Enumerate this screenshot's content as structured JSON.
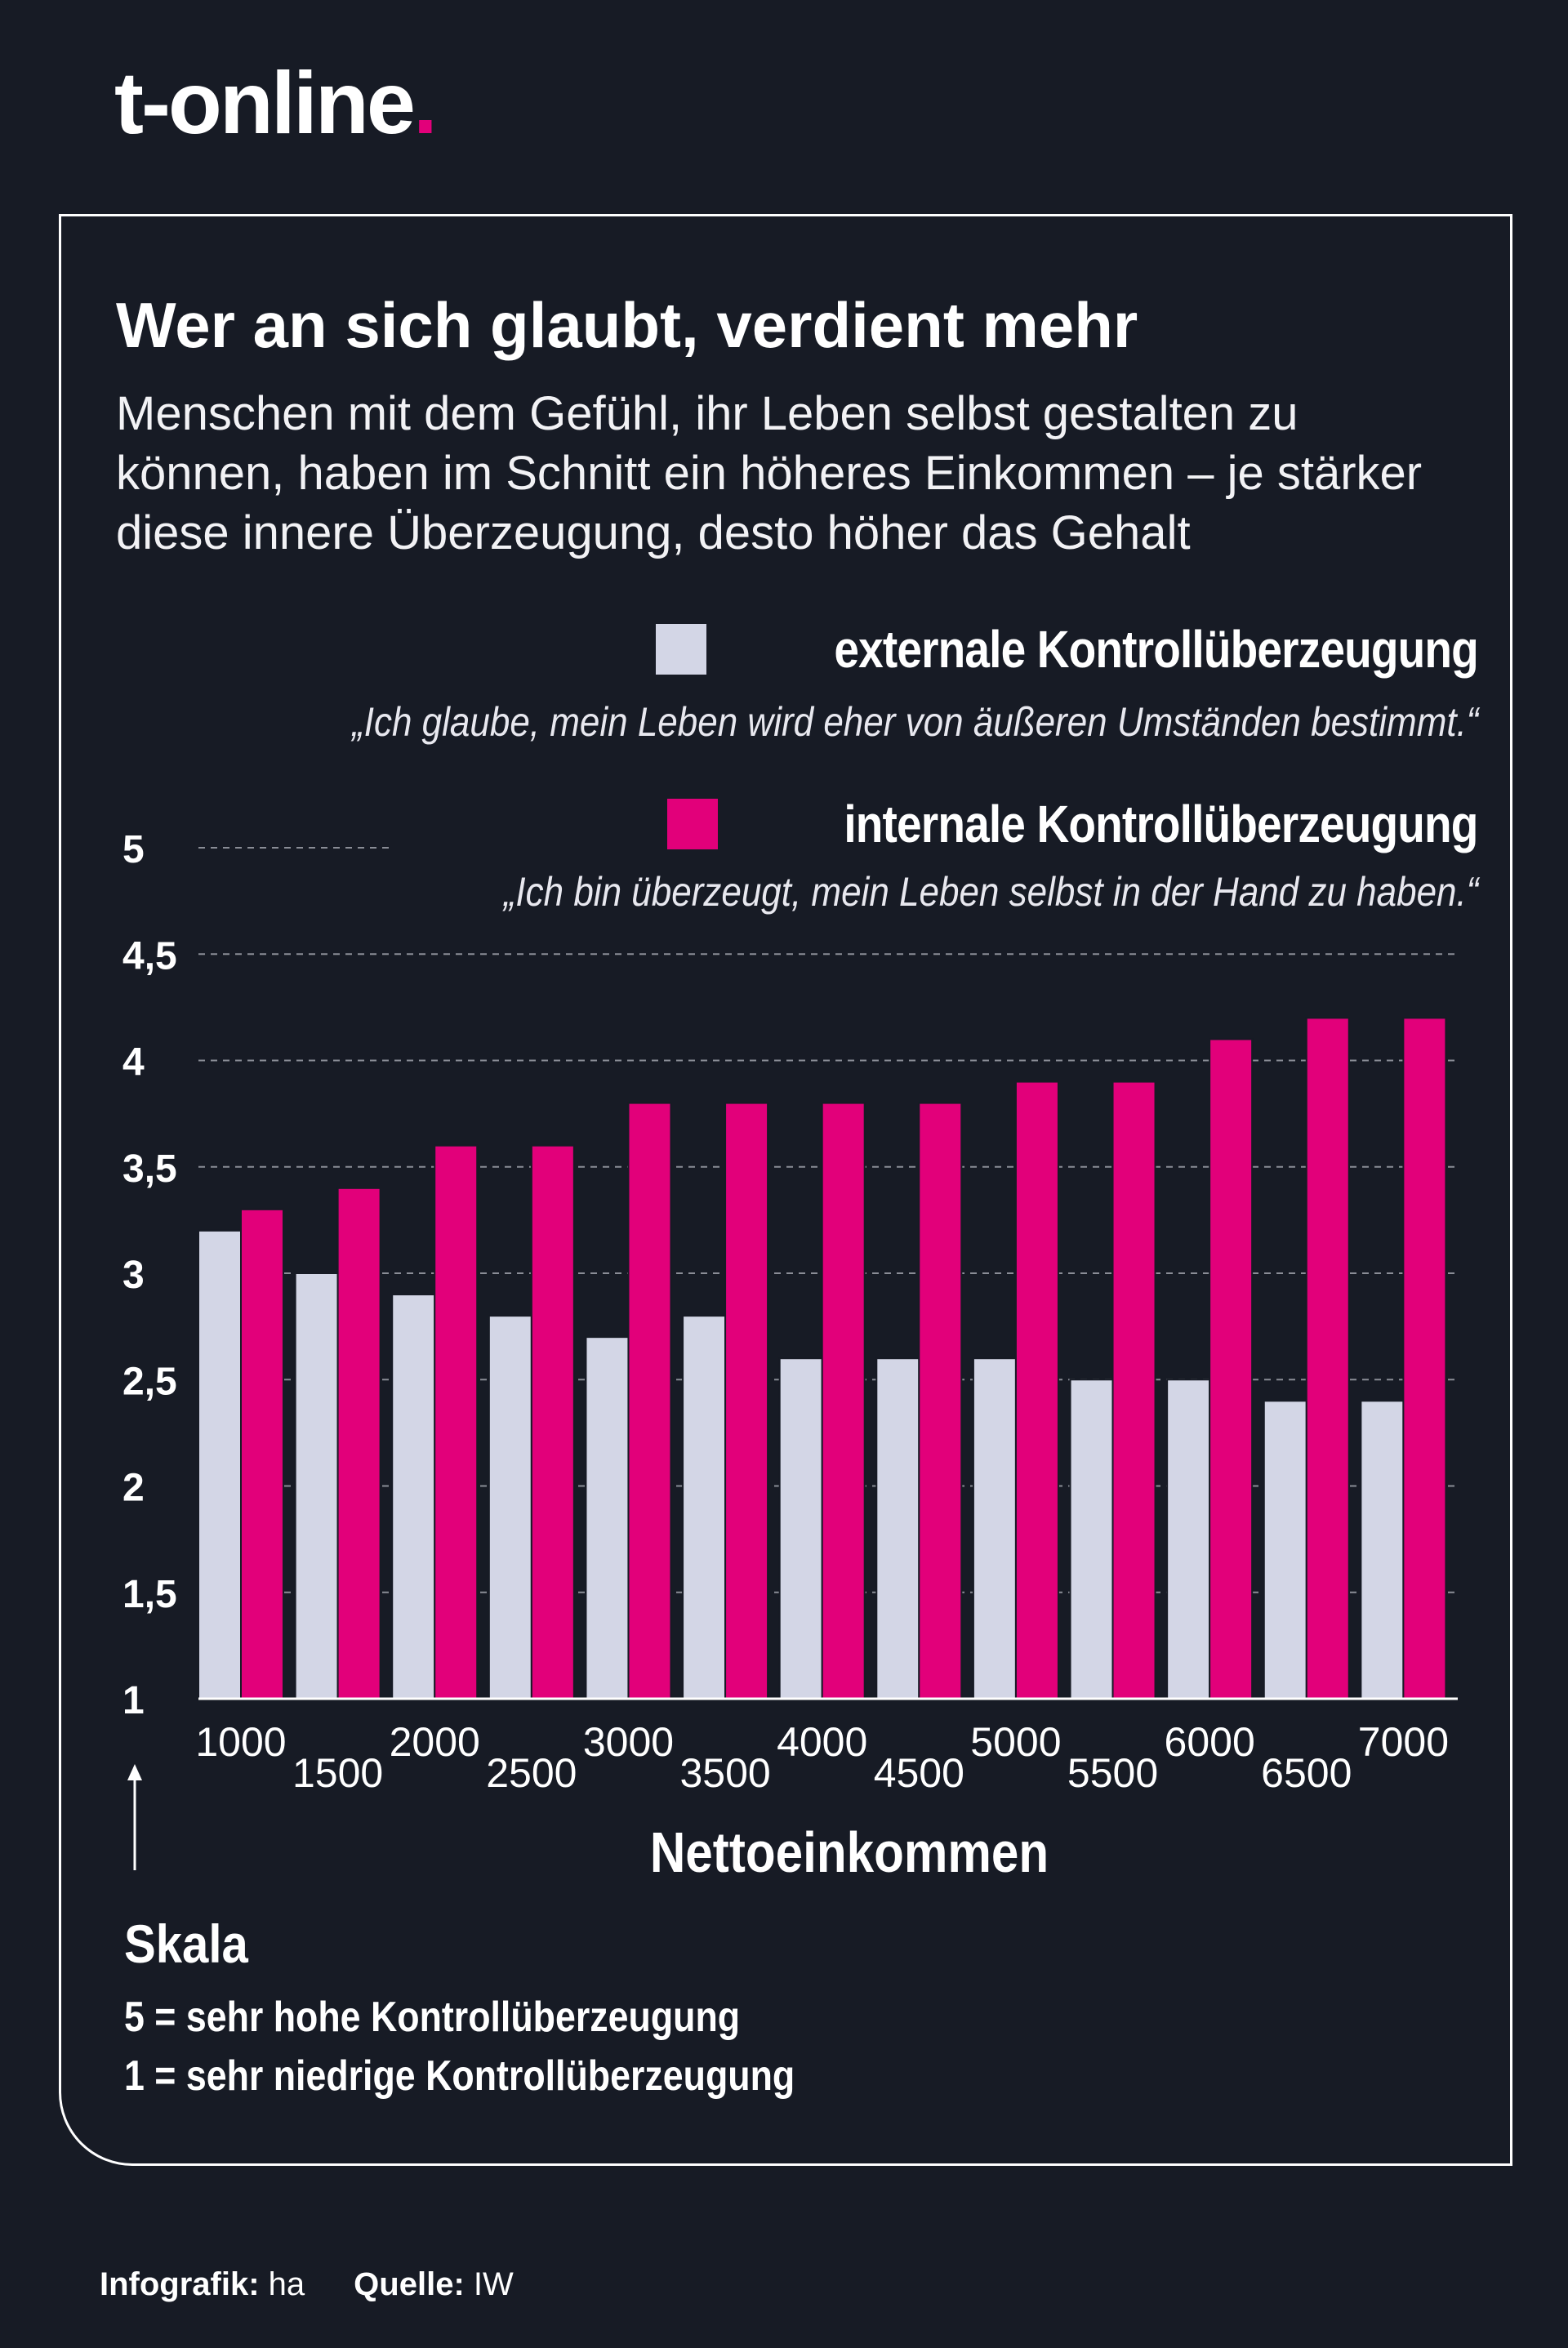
{
  "brand": {
    "name": "t-online",
    "dot": "."
  },
  "title": "Wer an sich glaubt, verdient mehr",
  "subtitle": "Menschen mit dem Gefühl, ihr Leben selbst gestalten zu können, haben im Schnitt ein höheres Einkommen – je stärker diese innere Überzeugung, desto höher das Gehalt",
  "legend": [
    {
      "label": "externale Kontrollüberzeugung",
      "quote": "„Ich glaube, mein Leben wird eher von äußeren Umständen bestimmt.“",
      "color": "#d3d6e6"
    },
    {
      "label": "internale Kontrollüberzeugung",
      "quote": "„Ich bin überzeugt, mein Leben selbst in der Hand zu haben.“",
      "color": "#e2007a"
    }
  ],
  "chart_data": {
    "type": "bar",
    "xlabel": "Nettoeinkommen",
    "ylabel": "",
    "ylim": [
      1,
      5
    ],
    "yticks": [
      "1",
      "1,5",
      "2",
      "2,5",
      "3",
      "3,5",
      "4",
      "4,5",
      "5"
    ],
    "categories": [
      "1000",
      "1500",
      "2000",
      "2500",
      "3000",
      "3500",
      "4000",
      "4500",
      "5000",
      "5500",
      "6000",
      "6500",
      "7000"
    ],
    "series": [
      {
        "name": "externale Kontrollüberzeugung",
        "color": "#d3d6e6",
        "values": [
          3.2,
          3.0,
          2.9,
          2.8,
          2.7,
          2.8,
          2.6,
          2.6,
          2.6,
          2.5,
          2.5,
          2.4,
          2.4
        ]
      },
      {
        "name": "internale Kontrollüberzeugung",
        "color": "#e2007a",
        "values": [
          3.3,
          3.4,
          3.6,
          3.6,
          3.8,
          3.8,
          3.8,
          3.8,
          3.9,
          3.9,
          4.1,
          4.2,
          4.2
        ]
      }
    ],
    "grid": true
  },
  "scale": {
    "title": "Skala",
    "lines": [
      "5 = sehr hohe Kontrollüberzeugung",
      "1 = sehr niedrige Kontrollüberzeugung"
    ]
  },
  "credits": {
    "infografik_label": "Infografik:",
    "infografik_value": "ha",
    "quelle_label": "Quelle:",
    "quelle_value": "IW"
  }
}
